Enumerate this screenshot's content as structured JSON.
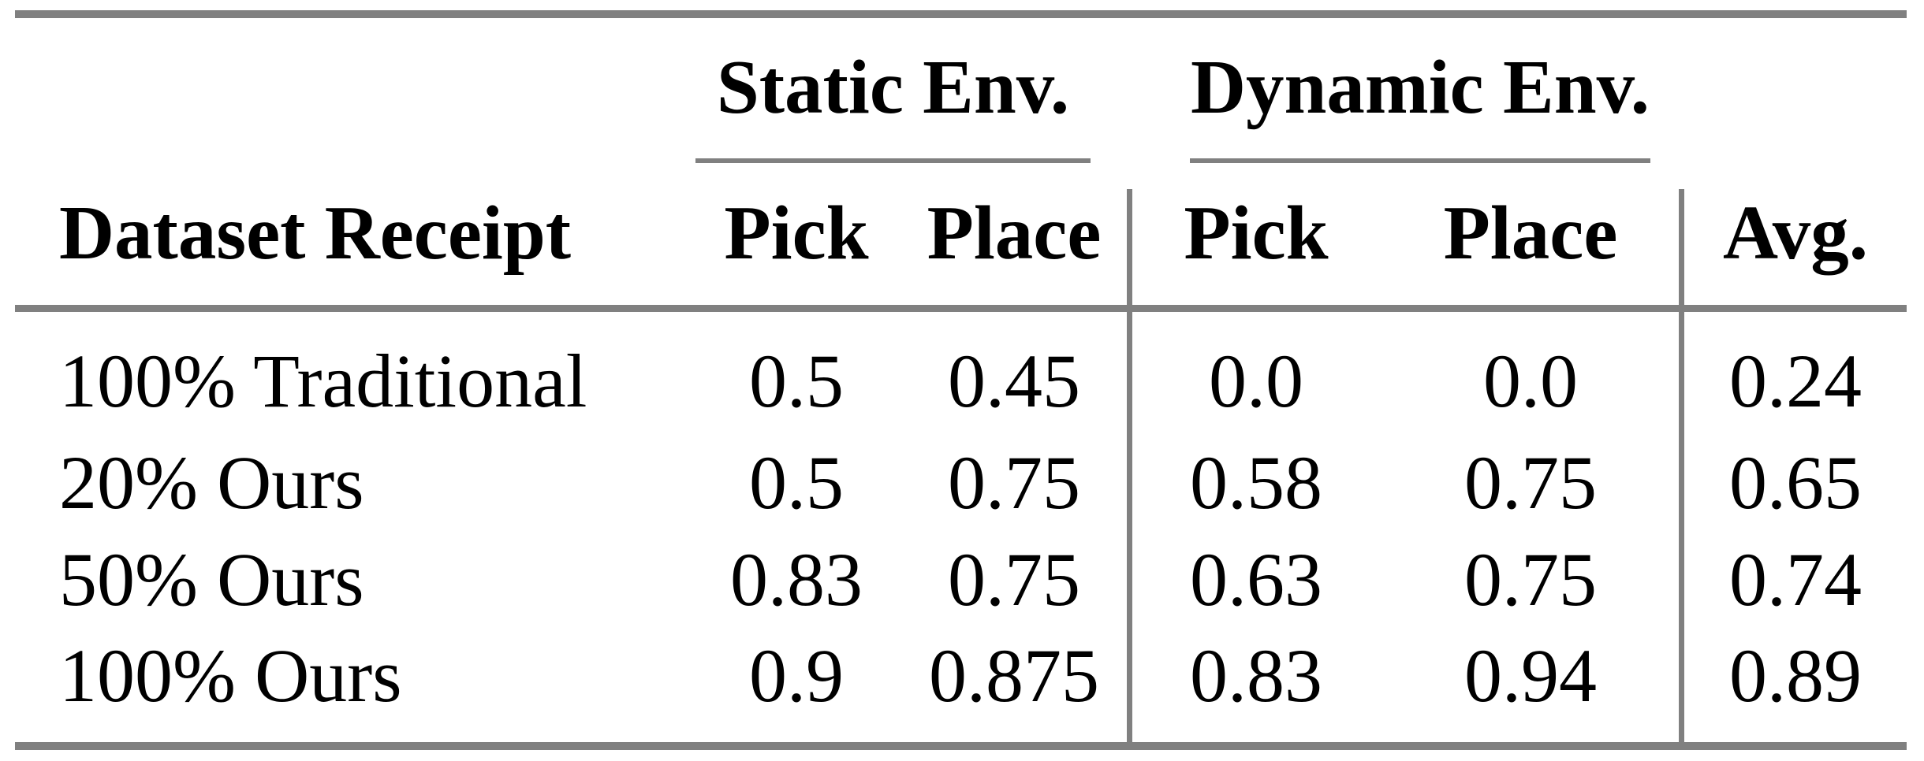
{
  "table": {
    "column_groups": [
      {
        "label": "Static Env."
      },
      {
        "label": "Dynamic Env."
      }
    ],
    "header": {
      "row_label": "Dataset Receipt",
      "static_pick": "Pick",
      "static_place": "Place",
      "dynamic_pick": "Pick",
      "dynamic_place": "Place",
      "avg": "Avg."
    },
    "rows": [
      {
        "cells": [
          "100% Traditional",
          "0.5",
          "0.45",
          "0.0",
          "0.0",
          "0.24"
        ]
      },
      {
        "cells": [
          "20% Ours",
          "0.5",
          "0.75",
          "0.58",
          "0.75",
          "0.65"
        ]
      },
      {
        "cells": [
          "50% Ours",
          "0.83",
          "0.75",
          "0.63",
          "0.75",
          "0.74"
        ]
      },
      {
        "cells": [
          "100% Ours",
          "0.9",
          "0.875",
          "0.83",
          "0.94",
          "0.89"
        ]
      }
    ],
    "colors": {
      "rule_gray": "#808080",
      "text_black": "#000000",
      "background": "#ffffff"
    }
  }
}
